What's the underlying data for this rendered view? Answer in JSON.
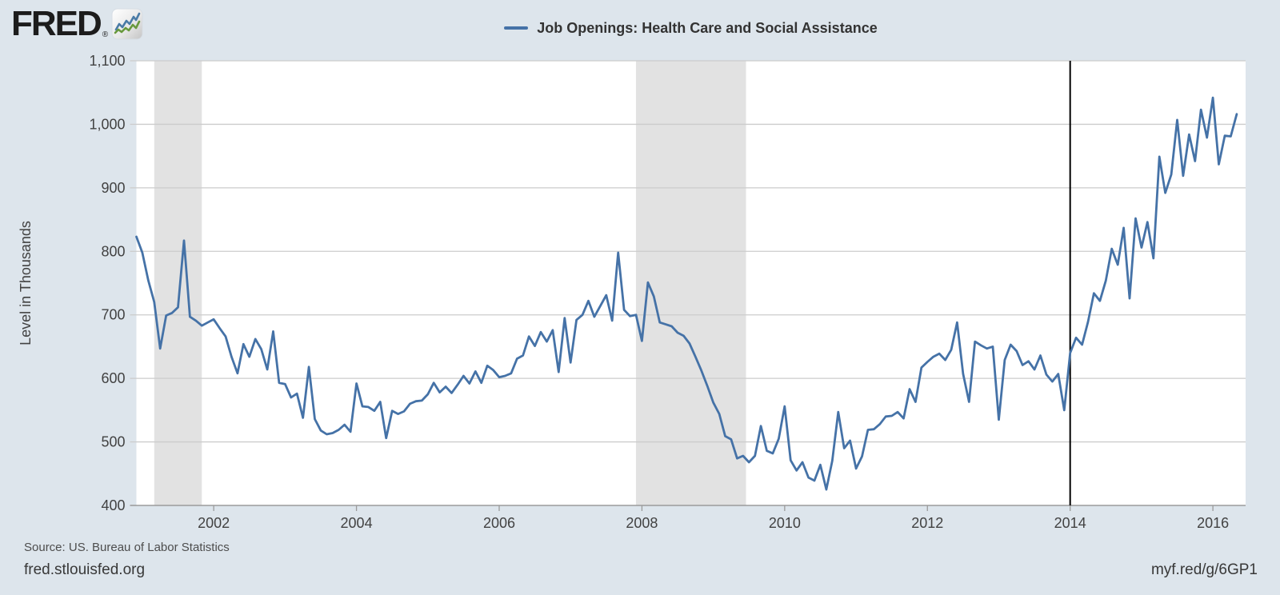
{
  "header": {
    "logo_text": "FRED",
    "registered_mark": "®",
    "logo_icon": "fred-zigzag-chart-icon",
    "logo_icon_colors": {
      "blue": "#4a7ba6",
      "green": "#68993d"
    }
  },
  "legend": {
    "swatch_color": "#4572a7",
    "label": "Job Openings: Health Care and Social Assistance"
  },
  "chart_data": {
    "type": "line",
    "title": "Job Openings: Health Care and Social Assistance",
    "xlabel": "",
    "ylabel": "Level in Thousands",
    "ylim": [
      400,
      1100
    ],
    "y_ticks": [
      400,
      500,
      600,
      700,
      800,
      900,
      1000,
      1100
    ],
    "x_ticks": [
      2002,
      2004,
      2006,
      2008,
      2010,
      2012,
      2014,
      2016
    ],
    "xlim_decimal": [
      2000.9167,
      2016.4583
    ],
    "grid": true,
    "legend_position": "top-center",
    "plot_bg": "#ffffff",
    "page_bg": "#dde5ec",
    "line_color": "#4572a7",
    "gridline_color": "#cccccc",
    "axis_line_color": "#9b9b9b",
    "tick_label_color": "#424242",
    "recession_band_color": "#e2e2e2",
    "recession_bands": [
      {
        "label": "2001 recession",
        "start_decimal": 2001.1667,
        "end_decimal": 2001.8333
      },
      {
        "label": "2007-2009 recession",
        "start_decimal": 2007.9167,
        "end_decimal": 2009.4583
      }
    ],
    "vertical_line": {
      "x_decimal": 2014.0,
      "color": "#000000"
    },
    "series": [
      {
        "name": "Job Openings: Health Care and Social Assistance",
        "units": "thousands",
        "frequency": "monthly",
        "start": "2000-12",
        "end": "2016-05",
        "values": [
          823,
          798,
          754,
          720,
          647,
          699,
          703,
          712,
          817,
          697,
          691,
          683,
          688,
          693,
          679,
          666,
          634,
          608,
          654,
          634,
          662,
          646,
          614,
          674,
          593,
          591,
          570,
          576,
          538,
          618,
          536,
          518,
          512,
          514,
          519,
          527,
          516,
          592,
          556,
          555,
          549,
          563,
          506,
          549,
          544,
          548,
          560,
          564,
          565,
          575,
          593,
          578,
          587,
          577,
          590,
          604,
          592,
          611,
          593,
          620,
          613,
          602,
          604,
          608,
          631,
          636,
          666,
          651,
          673,
          658,
          676,
          610,
          695,
          625,
          692,
          700,
          722,
          697,
          714,
          731,
          691,
          798,
          708,
          698,
          700,
          659,
          751,
          729,
          688,
          685,
          682,
          672,
          667,
          655,
          634,
          612,
          588,
          562,
          544,
          509,
          504,
          474,
          478,
          468,
          478,
          525,
          486,
          482,
          505,
          556,
          471,
          455,
          468,
          444,
          439,
          464,
          425,
          470,
          547,
          490,
          502,
          458,
          477,
          519,
          520,
          528,
          540,
          541,
          547,
          537,
          583,
          563,
          617,
          626,
          634,
          639,
          629,
          645,
          688,
          607,
          563,
          658,
          652,
          647,
          650,
          535,
          629,
          653,
          643,
          621,
          627,
          614,
          636,
          606,
          595,
          607,
          550,
          640,
          664,
          653,
          689,
          734,
          722,
          754,
          804,
          779,
          837,
          726,
          852,
          806,
          846,
          789,
          949,
          892,
          921,
          1007,
          919,
          984,
          942,
          1023,
          979,
          1042,
          937,
          982,
          981,
          1016
        ]
      }
    ]
  },
  "footer": {
    "source": "Source: US. Bureau of Labor Statistics",
    "site": "fred.stlouisfed.org",
    "share_url": "myf.red/g/6GP1"
  }
}
